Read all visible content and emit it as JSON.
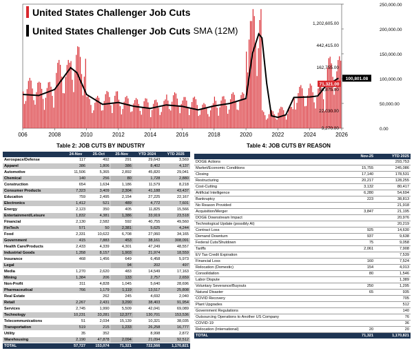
{
  "chart_data": {
    "type": "bar",
    "title": "United States Challenger Job Cuts",
    "title_sma": "United States Challenger Job Cuts",
    "sma_suffix": "SMA (12M)",
    "x_ticks": [
      "006",
      "2008",
      "2010",
      "2012",
      "2014",
      "2016",
      "2018",
      "2020",
      "2022",
      "2024",
      "2026"
    ],
    "left_ticks": [
      "1,202,605.00",
      "442,415.00",
      "162,755.00",
      "59,875.00",
      "22,030.00",
      "9,270.00"
    ],
    "right_ticks": [
      "250,000.00",
      "200,000.00",
      "150,000.00",
      "100,000.00",
      "50,000.00",
      "0.00"
    ],
    "ylim_right": [
      0,
      250000
    ],
    "last_value_label": "71,321.00",
    "last_sma_label": "100,801.08",
    "bar_color": "#d8282e",
    "sma_color": "#000000",
    "yearly_avg": [
      {
        "year": 2006,
        "value": 70000
      },
      {
        "year": 2007,
        "value": 65000
      },
      {
        "year": 2008,
        "value": 95000
      },
      {
        "year": 2009,
        "value": 115000
      },
      {
        "year": 2010,
        "value": 45000
      },
      {
        "year": 2011,
        "value": 52000
      },
      {
        "year": 2012,
        "value": 45000
      },
      {
        "year": 2013,
        "value": 42000
      },
      {
        "year": 2014,
        "value": 40000
      },
      {
        "year": 2015,
        "value": 50000
      },
      {
        "year": 2016,
        "value": 44000
      },
      {
        "year": 2017,
        "value": 35000
      },
      {
        "year": 2018,
        "value": 45000
      },
      {
        "year": 2019,
        "value": 50000
      },
      {
        "year": 2020,
        "value": 180000
      },
      {
        "year": 2021,
        "value": 25000
      },
      {
        "year": 2022,
        "value": 30000
      },
      {
        "year": 2023,
        "value": 60000
      },
      {
        "year": 2024,
        "value": 62000
      },
      {
        "year": 2025,
        "value": 100000
      }
    ],
    "sma": [
      {
        "x": 2006.0,
        "y": 68000
      },
      {
        "x": 2007.0,
        "y": 66000
      },
      {
        "x": 2008.0,
        "y": 78000
      },
      {
        "x": 2008.5,
        "y": 100000
      },
      {
        "x": 2009.0,
        "y": 122000
      },
      {
        "x": 2009.4,
        "y": 112000
      },
      {
        "x": 2010.0,
        "y": 68000
      },
      {
        "x": 2011.0,
        "y": 48000
      },
      {
        "x": 2012.0,
        "y": 52000
      },
      {
        "x": 2013.0,
        "y": 44000
      },
      {
        "x": 2014.0,
        "y": 40000
      },
      {
        "x": 2015.0,
        "y": 47000
      },
      {
        "x": 2016.0,
        "y": 44000
      },
      {
        "x": 2017.0,
        "y": 37000
      },
      {
        "x": 2018.0,
        "y": 45000
      },
      {
        "x": 2019.0,
        "y": 50000
      },
      {
        "x": 2020.0,
        "y": 60000
      },
      {
        "x": 2020.4,
        "y": 150000
      },
      {
        "x": 2020.8,
        "y": 190000
      },
      {
        "x": 2021.0,
        "y": 182000
      },
      {
        "x": 2021.3,
        "y": 90000
      },
      {
        "x": 2021.6,
        "y": 25000
      },
      {
        "x": 2022.0,
        "y": 22000
      },
      {
        "x": 2022.5,
        "y": 27000
      },
      {
        "x": 2023.0,
        "y": 62000
      },
      {
        "x": 2024.0,
        "y": 63000
      },
      {
        "x": 2024.5,
        "y": 65000
      },
      {
        "x": 2025.0,
        "y": 85000
      },
      {
        "x": 2025.8,
        "y": 100801
      }
    ]
  },
  "table1": {
    "title": "Table 2: JOB CUTS BY INDUSTRY",
    "headers": [
      "",
      "24-Nov",
      "25-Oct",
      "25-Nov",
      "YTD 2024",
      "YTD 2025"
    ],
    "rows": [
      [
        "Aerospace/Defense",
        "117",
        "492",
        "291",
        "29,643",
        "3,569"
      ],
      [
        "Apparel",
        "386",
        "1,806",
        "386",
        "8,402",
        "4,137"
      ],
      [
        "Automotive",
        "11,506",
        "5,365",
        "2,892",
        "45,820",
        "29,041"
      ],
      [
        "Chemical",
        "140",
        "256",
        "80",
        "1,728",
        "2,880"
      ],
      [
        "Construction",
        "654",
        "1,634",
        "1,186",
        "11,579",
        "8,218"
      ],
      [
        "Consumer Products",
        "7,323",
        "3,409",
        "2,304",
        "41,188",
        "43,437"
      ],
      [
        "Education",
        "759",
        "2,495",
        "2,154",
        "27,225",
        "22,167"
      ],
      [
        "Electronics",
        "1,412",
        "521",
        "489",
        "4,772",
        "7,601"
      ],
      [
        "Energy",
        "2,123",
        "350",
        "405",
        "11,825",
        "15,566"
      ],
      [
        "Entertainment/Leisure",
        "1,832",
        "4,381",
        "1,386",
        "33,919",
        "23,518"
      ],
      [
        "Financial",
        "2,130",
        "2,582",
        "592",
        "40,755",
        "49,560"
      ],
      [
        "FinTech",
        "571",
        "50",
        "2,381",
        "5,625",
        "4,244"
      ],
      [
        "Food",
        "2,331",
        "10,622",
        "6,708",
        "27,060",
        "34,165"
      ],
      [
        "Government",
        "415",
        "7,883",
        "453",
        "38,161",
        "308,091"
      ],
      [
        "Health Care/Products",
        "2,433",
        "4,339",
        "4,301",
        "47,249",
        "48,557"
      ],
      [
        "Industrial Goods",
        "1,358",
        "8,157",
        "1,903",
        "21,974",
        "18,559"
      ],
      [
        "Insurance",
        "468",
        "1,456",
        "649",
        "6,458",
        "5,973"
      ],
      [
        "Legal",
        "",
        "",
        "94",
        "202",
        "497"
      ],
      [
        "Media",
        "1,270",
        "2,620",
        "483",
        "14,549",
        "17,163"
      ],
      [
        "Mining",
        "1,384",
        "206",
        "133",
        "2,757",
        "2,659"
      ],
      [
        "Non-Profit",
        "311",
        "4,828",
        "1,045",
        "5,640",
        "28,696"
      ],
      [
        "Pharmaceutical",
        "766",
        "1,179",
        "1,119",
        "13,517",
        "25,808"
      ],
      [
        "Real Estate",
        "",
        "262",
        "245",
        "4,692",
        "2,040"
      ],
      [
        "Retail",
        "2,267",
        "2,431",
        "3,290",
        "38,403",
        "91,954"
      ],
      [
        "Services",
        "2,745",
        "1,990",
        "5,509",
        "42,041",
        "69,089"
      ],
      [
        "Technology",
        "10,231",
        "33,281",
        "12,377",
        "130,701",
        "153,536"
      ],
      [
        "Telecommunications",
        "51",
        "2,034",
        "15,139",
        "10,321",
        "38,035"
      ],
      [
        "Transportation",
        "519",
        "215",
        "1,233",
        "26,258",
        "16,777"
      ],
      [
        "Utility",
        "35",
        "352",
        "",
        "8,998",
        "2,872"
      ],
      [
        "Warehousing",
        "2,190",
        "47,878",
        "2,094",
        "21,094",
        "92,512"
      ]
    ],
    "total": [
      "TOTAL",
      "57,727",
      "153,074",
      "71,321",
      "722,566",
      "1,170,821"
    ]
  },
  "table2": {
    "title": "Table 4: JOB CUTS BY REASON",
    "headers": [
      "",
      "Nov-25",
      "YTD 2025"
    ],
    "rows": [
      [
        "DOGE Actions",
        "",
        "293,753"
      ],
      [
        "Market/Economic Conditions",
        "15,755",
        "245,086"
      ],
      [
        "Closing",
        "17,140",
        "178,531"
      ],
      [
        "Restructuring",
        "20,217",
        "128,255"
      ],
      [
        "Cost-Cutting",
        "3,132",
        "80,417"
      ],
      [
        "Artificial Intelligence",
        "6,280",
        "54,694"
      ],
      [
        "Bankruptcy",
        "223",
        "38,813"
      ],
      [
        "No Reason Provided",
        "",
        "21,918"
      ],
      [
        "Acquisition/Merger",
        "3,847",
        "21,195"
      ],
      [
        "DOGE Downstream Impact",
        "",
        "20,976"
      ],
      [
        "Technological Update (possibly AI)",
        "",
        "20,219"
      ],
      [
        "Contract Loss",
        "925",
        "14,630"
      ],
      [
        "Demand Downturn",
        "937",
        "9,638"
      ],
      [
        "Federal Cuts/Shutdown",
        "75",
        "9,058"
      ],
      [
        "Tariffs",
        "2,061",
        "7,908"
      ],
      [
        "EV Tax Credit Expiration",
        "",
        "7,539"
      ],
      [
        "Financial Loss",
        "160",
        "7,524"
      ],
      [
        "Relocation (Domestic)",
        "154",
        "4,013"
      ],
      [
        "Consolidation",
        "80",
        "1,546"
      ],
      [
        "Labor Dispute",
        "",
        "1,389"
      ],
      [
        "Voluntary Severance/Buyouts",
        "250",
        "1,295"
      ],
      [
        "Natural Disaster",
        "65",
        "935"
      ],
      [
        "COVID Recovery",
        "",
        "705"
      ],
      [
        "Plant Upgrades",
        "",
        "512"
      ],
      [
        "Government Regulations",
        "",
        "140"
      ],
      [
        "Outsourcing Operations to Another US Company",
        "",
        "76"
      ],
      [
        "COVID-19",
        "",
        "36"
      ],
      [
        "Relocation (International)",
        "20",
        "20"
      ]
    ],
    "total": [
      "TOTAL",
      "71,321",
      "1,170,821"
    ]
  }
}
